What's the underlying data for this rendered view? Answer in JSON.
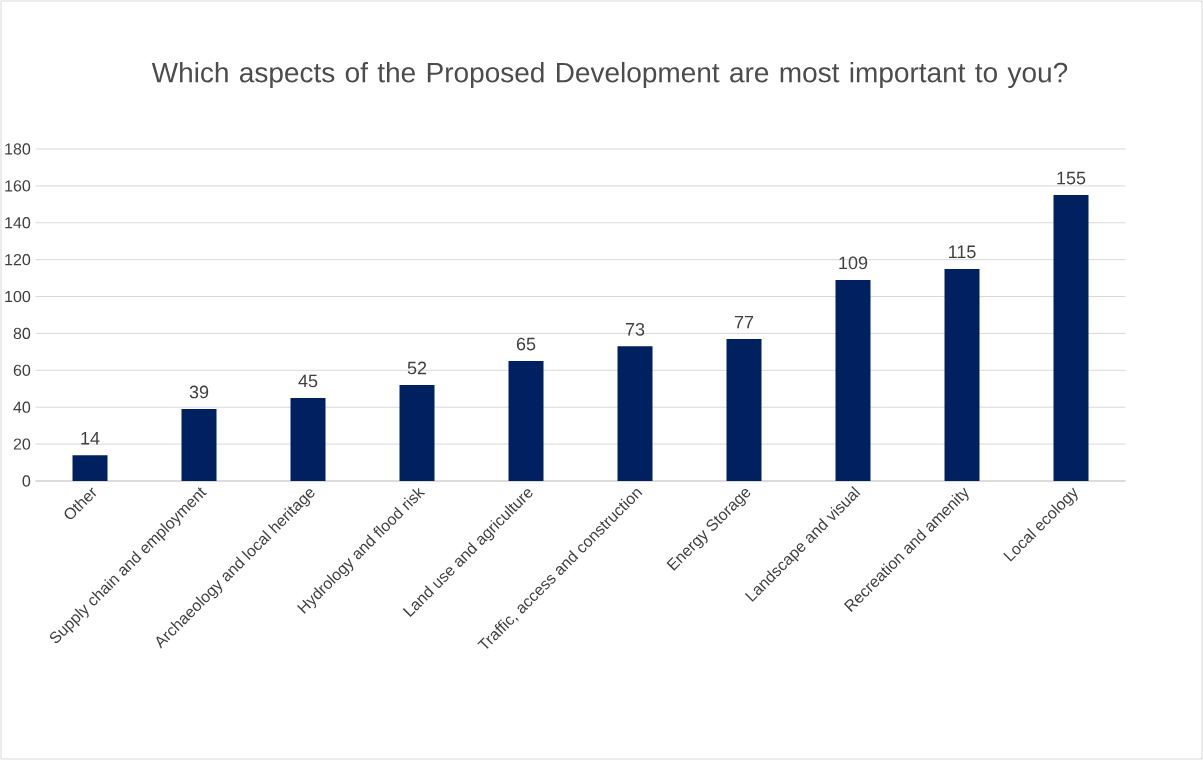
{
  "chart_data": {
    "type": "bar",
    "title": "Which aspects of the Proposed Development are most important to you?",
    "categories": [
      "Other",
      "Supply chain and employment",
      "Archaeology and local heritage",
      "Hydrology and flood risk",
      "Land use and agriculture",
      "Traffic, access and construction",
      "Energy Storage",
      "Landscape and visual",
      "Recreation and amenity",
      "Local ecology"
    ],
    "values": [
      14,
      39,
      45,
      52,
      65,
      73,
      77,
      109,
      115,
      155
    ],
    "color": "#002060",
    "ylim": [
      0,
      180
    ],
    "yticks": [
      0,
      20,
      40,
      60,
      80,
      100,
      120,
      140,
      160,
      180
    ],
    "grid": "y",
    "data_labels": true
  }
}
